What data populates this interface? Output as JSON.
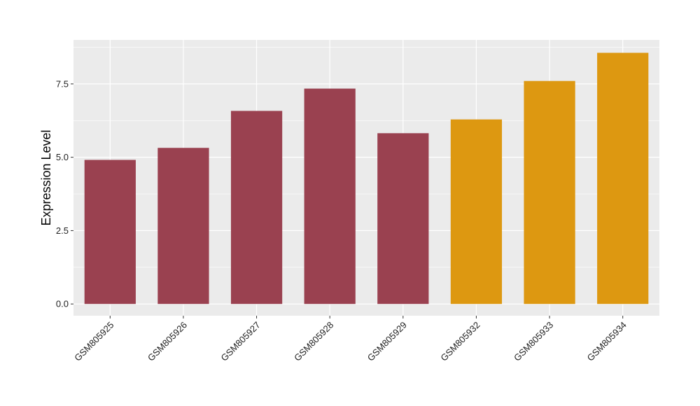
{
  "chart_data": {
    "type": "bar",
    "title": "",
    "xlabel": "",
    "ylabel": "Expression Level",
    "categories": [
      "GSM805925",
      "GSM805926",
      "GSM805927",
      "GSM805928",
      "GSM805929",
      "GSM805932",
      "GSM805933",
      "GSM805934"
    ],
    "values": [
      4.91,
      5.32,
      6.58,
      7.34,
      5.82,
      6.29,
      7.6,
      8.56
    ],
    "bar_colors": [
      "#9A4150",
      "#9A4150",
      "#9A4150",
      "#9A4150",
      "#9A4150",
      "#DD9811",
      "#DD9811",
      "#DD9811"
    ],
    "ylim": [
      -0.4,
      9.0
    ],
    "yticks": [
      0.0,
      2.5,
      5.0,
      7.5
    ],
    "ytick_labels": [
      "0.0",
      "2.5",
      "5.0",
      "7.5"
    ],
    "grid": true,
    "panel_background": "#EBEBEB",
    "legend": "none"
  }
}
